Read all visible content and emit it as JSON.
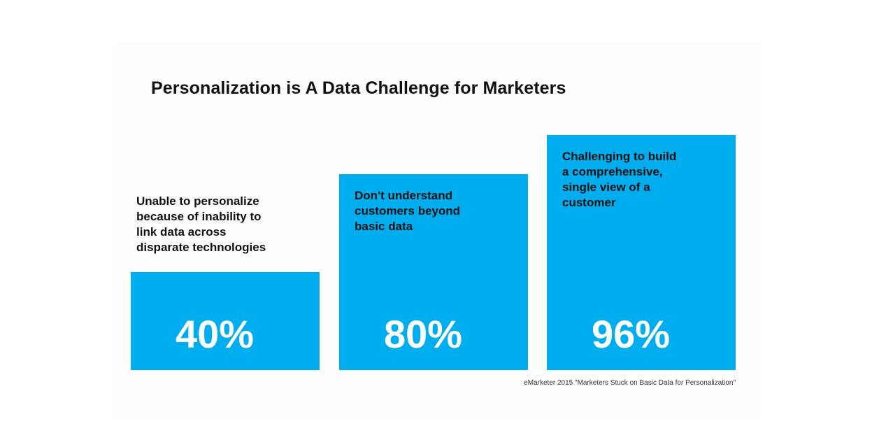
{
  "title": "Personalization is A Data Challenge for Marketers",
  "source": "eMarketer 2015 \"Marketers Stuck on Basic Data for Personalization\"",
  "colors": {
    "bar": "#00aeef",
    "bar_text": "#ffffff",
    "text": "#111111"
  },
  "chart_data": {
    "type": "bar",
    "title": "Personalization is A Data Challenge for Marketers",
    "categories": [
      "Unable to personalize\nbecause of inability to\nlink data across\ndisparate technologies",
      "Don't understand\ncustomers beyond\nbasic data",
      "Challenging to build\na comprehensive,\nsingle view of a\ncustomer"
    ],
    "values": [
      40,
      80,
      96
    ],
    "value_labels": [
      "40%",
      "80%",
      "96%"
    ],
    "unit": "%",
    "xlabel": "",
    "ylabel": "",
    "ylim": [
      0,
      100
    ],
    "grid": false,
    "legend": "none"
  }
}
